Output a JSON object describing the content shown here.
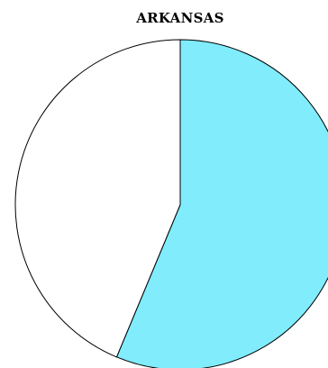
{
  "chart_data": {
    "type": "pie",
    "title": "ARKANSAS",
    "slices": [
      {
        "label": "",
        "value": 56.3,
        "color": "#80ecfc"
      },
      {
        "label": "",
        "value": 43.7,
        "color": "#ffffff"
      }
    ],
    "stroke_color": "#000000",
    "start": "top",
    "direction": "clockwise"
  }
}
